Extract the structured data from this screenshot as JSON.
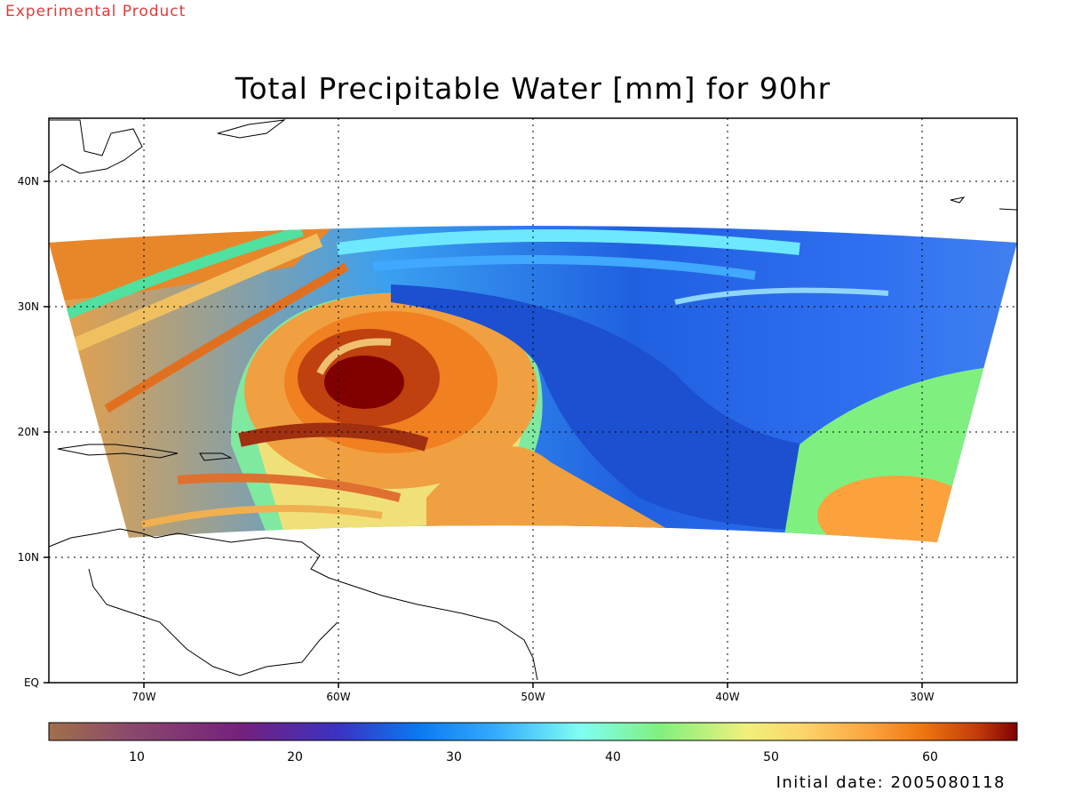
{
  "header": {
    "experimental_label": "Experimental Product",
    "title": "Total Precipitable Water [mm] for 90hr"
  },
  "map": {
    "lon_ticks": [
      "70W",
      "60W",
      "50W",
      "40W",
      "30W"
    ],
    "lat_ticks": [
      "EQ",
      "10N",
      "20N",
      "30N",
      "40N"
    ],
    "lon_range": [
      -75,
      -25
    ],
    "lat_range": [
      0,
      45
    ],
    "gridlines": "dotted"
  },
  "colorbar": {
    "labels": [
      "10",
      "20",
      "30",
      "40",
      "50",
      "60"
    ],
    "range": [
      5,
      65
    ],
    "colors": [
      "#a0704a",
      "#8b4a6b",
      "#74207e",
      "#3a33c4",
      "#0a78f0",
      "#33aaff",
      "#7ffff2",
      "#7ff07f",
      "#f0f07a",
      "#fcd468",
      "#fca23c",
      "#f07810",
      "#c33a08",
      "#800000"
    ]
  },
  "footer": {
    "initial_date_label": "Initial date: 2005080118"
  }
}
